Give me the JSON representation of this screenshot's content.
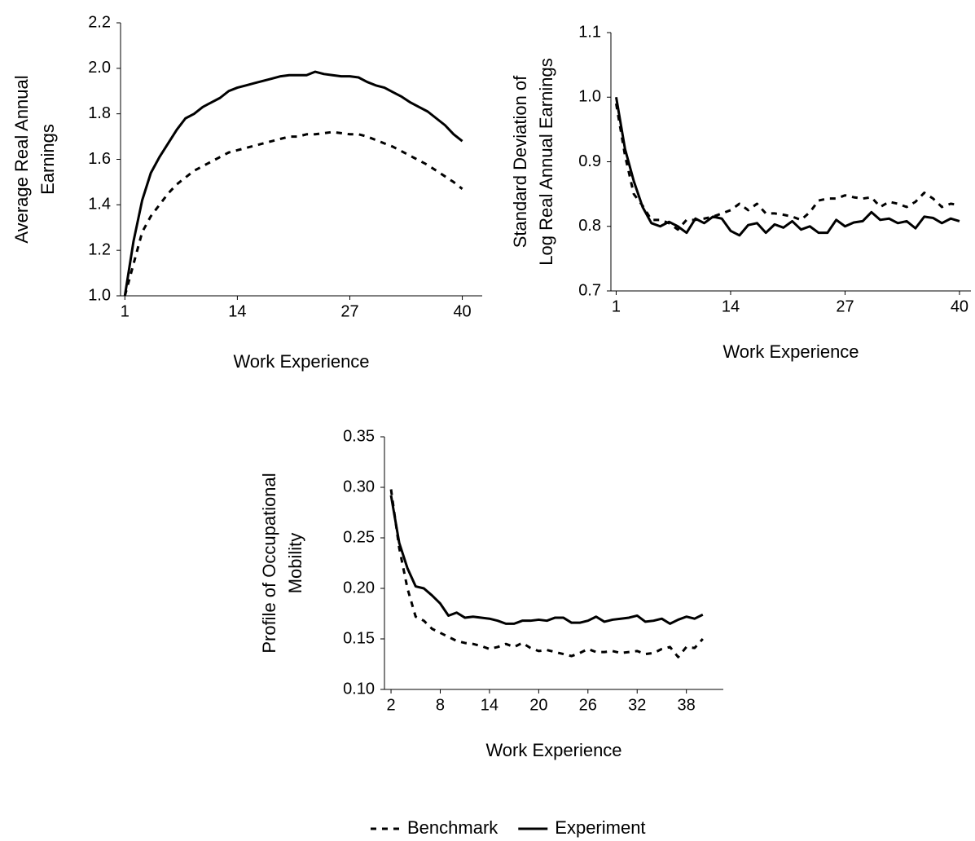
{
  "chart_data": [
    {
      "type": "line",
      "ylabel": [
        "Average Real Annual",
        "Earnings"
      ],
      "xlabel": "Work Experience",
      "x": [
        1,
        2,
        3,
        4,
        5,
        6,
        7,
        8,
        9,
        10,
        11,
        12,
        13,
        14,
        15,
        16,
        17,
        18,
        19,
        20,
        21,
        22,
        23,
        24,
        25,
        26,
        27,
        28,
        29,
        30,
        31,
        32,
        33,
        34,
        35,
        36,
        37,
        38,
        39,
        40
      ],
      "xlim": [
        0.5,
        42.3
      ],
      "xticks": [
        1,
        14,
        27,
        40
      ],
      "ylim": [
        1.0,
        2.2
      ],
      "yticks": [
        {
          "value": 1.0,
          "label": "1.0"
        },
        1.2,
        1.4,
        1.6,
        1.8,
        {
          "value": 2.0,
          "label": "2.0"
        },
        2.2
      ],
      "series": [
        {
          "name": "Benchmark",
          "color": "#000000",
          "style": "dashed",
          "values": [
            1.0,
            1.14,
            1.28,
            1.35,
            1.4,
            1.45,
            1.49,
            1.52,
            1.55,
            1.57,
            1.59,
            1.61,
            1.63,
            1.64,
            1.65,
            1.66,
            1.67,
            1.68,
            1.69,
            1.7,
            1.7,
            1.71,
            1.71,
            1.715,
            1.72,
            1.715,
            1.71,
            1.71,
            1.7,
            1.685,
            1.67,
            1.655,
            1.635,
            1.615,
            1.595,
            1.575,
            1.55,
            1.525,
            1.5,
            1.47
          ]
        },
        {
          "name": "Experiment",
          "color": "#000000",
          "style": "solid",
          "values": [
            1.0,
            1.24,
            1.42,
            1.54,
            1.61,
            1.67,
            1.73,
            1.78,
            1.8,
            1.83,
            1.85,
            1.87,
            1.9,
            1.915,
            1.925,
            1.935,
            1.945,
            1.955,
            1.965,
            1.97,
            1.97,
            1.97,
            1.985,
            1.975,
            1.97,
            1.965,
            1.965,
            1.96,
            1.94,
            1.925,
            1.915,
            1.895,
            1.875,
            1.85,
            1.83,
            1.81,
            1.78,
            1.75,
            1.71,
            1.68
          ]
        }
      ]
    },
    {
      "type": "line",
      "ylabel": [
        "Standard Deviation of",
        "Log Real Annual Earnings"
      ],
      "xlabel": "Work Experience",
      "x": [
        1,
        2,
        3,
        4,
        5,
        6,
        7,
        8,
        9,
        10,
        11,
        12,
        13,
        14,
        15,
        16,
        17,
        18,
        19,
        20,
        21,
        22,
        23,
        24,
        25,
        26,
        27,
        28,
        29,
        30,
        31,
        32,
        33,
        34,
        35,
        36,
        37,
        38,
        39,
        40
      ],
      "xlim": [
        0.4,
        41.3
      ],
      "xticks": [
        1,
        14,
        27,
        40
      ],
      "ylim": [
        0.7,
        1.1
      ],
      "yticks": [
        0.7,
        0.8,
        0.9,
        {
          "value": 1.0,
          "label": "1.0"
        },
        1.1
      ],
      "series": [
        {
          "name": "Benchmark",
          "color": "#000000",
          "style": "dashed",
          "values": [
            0.99,
            0.91,
            0.85,
            0.832,
            0.81,
            0.81,
            0.805,
            0.795,
            0.81,
            0.81,
            0.812,
            0.815,
            0.82,
            0.825,
            0.835,
            0.825,
            0.835,
            0.82,
            0.82,
            0.818,
            0.815,
            0.81,
            0.822,
            0.84,
            0.843,
            0.843,
            0.848,
            0.845,
            0.843,
            0.845,
            0.83,
            0.838,
            0.835,
            0.83,
            0.838,
            0.852,
            0.843,
            0.83,
            0.835,
            0.833
          ]
        },
        {
          "name": "Experiment",
          "color": "#000000",
          "style": "solid",
          "values": [
            1.0,
            0.92,
            0.87,
            0.83,
            0.805,
            0.8,
            0.807,
            0.8,
            0.79,
            0.812,
            0.805,
            0.815,
            0.812,
            0.793,
            0.786,
            0.802,
            0.805,
            0.79,
            0.803,
            0.798,
            0.808,
            0.795,
            0.8,
            0.79,
            0.79,
            0.81,
            0.8,
            0.806,
            0.808,
            0.822,
            0.81,
            0.812,
            0.805,
            0.808,
            0.797,
            0.815,
            0.813,
            0.805,
            0.812,
            0.808
          ]
        }
      ]
    },
    {
      "type": "line",
      "ylabel": [
        "Profile of Occupational",
        "Mobility"
      ],
      "xlabel": "Work Experience",
      "x": [
        2,
        3,
        4,
        5,
        6,
        7,
        8,
        9,
        10,
        11,
        12,
        13,
        14,
        15,
        16,
        17,
        18,
        19,
        20,
        21,
        22,
        23,
        24,
        25,
        26,
        27,
        28,
        29,
        30,
        31,
        32,
        33,
        34,
        35,
        36,
        37,
        38,
        39,
        40
      ],
      "xlim": [
        1.2,
        42.5
      ],
      "xticks": [
        2,
        8,
        14,
        20,
        26,
        32,
        38
      ],
      "ylim": [
        0.1,
        0.35
      ],
      "yticks": [
        {
          "value": 0.1,
          "label": "0.10"
        },
        0.15,
        {
          "value": 0.2,
          "label": "0.20"
        },
        0.25,
        {
          "value": 0.3,
          "label": "0.30"
        },
        0.35
      ],
      "series": [
        {
          "name": "Benchmark",
          "color": "#000000",
          "style": "dashed",
          "values": [
            0.298,
            0.24,
            0.2,
            0.172,
            0.168,
            0.16,
            0.156,
            0.152,
            0.148,
            0.146,
            0.145,
            0.143,
            0.14,
            0.142,
            0.145,
            0.142,
            0.146,
            0.141,
            0.138,
            0.139,
            0.137,
            0.135,
            0.133,
            0.136,
            0.14,
            0.137,
            0.137,
            0.138,
            0.136,
            0.137,
            0.138,
            0.135,
            0.136,
            0.14,
            0.142,
            0.132,
            0.142,
            0.141,
            0.15
          ]
        },
        {
          "name": "Experiment",
          "color": "#000000",
          "style": "solid",
          "values": [
            0.292,
            0.245,
            0.22,
            0.202,
            0.2,
            0.193,
            0.185,
            0.173,
            0.176,
            0.171,
            0.172,
            0.171,
            0.17,
            0.168,
            0.165,
            0.165,
            0.168,
            0.168,
            0.169,
            0.168,
            0.171,
            0.171,
            0.166,
            0.166,
            0.168,
            0.172,
            0.167,
            0.169,
            0.17,
            0.171,
            0.173,
            0.167,
            0.168,
            0.17,
            0.165,
            0.169,
            0.172,
            0.17,
            0.174
          ]
        }
      ]
    }
  ]
}
